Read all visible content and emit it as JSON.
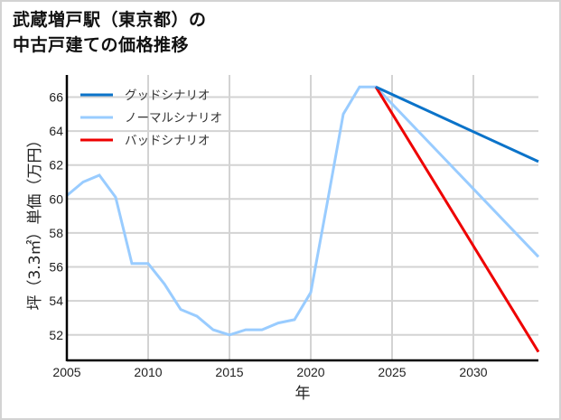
{
  "title_line1": "武蔵増戸駅（東京都）の",
  "title_line2": "中古戸建ての価格推移",
  "colors": {
    "good": "#0b73c9",
    "normal": "#99ccff",
    "bad": "#ee0000",
    "grid": "#d3d3d3",
    "axis": "#000000"
  },
  "chart_data": {
    "type": "line",
    "title": "武蔵増戸駅（東京都）の中古戸建ての価格推移",
    "xlabel": "年",
    "ylabel": "坪（3.3㎡）単価（万円）",
    "xlim": [
      2005,
      2034
    ],
    "ylim": [
      50.5,
      67.3
    ],
    "x_ticks": [
      2005,
      2010,
      2015,
      2020,
      2025,
      2030
    ],
    "y_ticks": [
      52,
      54,
      56,
      58,
      60,
      62,
      64,
      66
    ],
    "grid": true,
    "legend_position": "upper left",
    "series": [
      {
        "name": "グッドシナリオ",
        "color": "#0b73c9",
        "x": [
          2024,
          2034
        ],
        "values": [
          66.6,
          62.2
        ]
      },
      {
        "name": "ノーマルシナリオ",
        "color": "#99ccff",
        "x": [
          2005,
          2006,
          2007,
          2008,
          2009,
          2010,
          2011,
          2012,
          2013,
          2014,
          2015,
          2016,
          2017,
          2018,
          2019,
          2020,
          2021,
          2022,
          2023,
          2024,
          2034
        ],
        "values": [
          60.2,
          61.0,
          61.4,
          60.1,
          56.2,
          56.2,
          55.0,
          53.5,
          53.1,
          52.3,
          52.0,
          52.3,
          52.3,
          52.7,
          52.9,
          54.5,
          59.7,
          65.0,
          66.6,
          66.6,
          56.6
        ]
      },
      {
        "name": "バッドシナリオ",
        "color": "#ee0000",
        "x": [
          2024,
          2034
        ],
        "values": [
          66.6,
          51.0
        ]
      }
    ]
  }
}
